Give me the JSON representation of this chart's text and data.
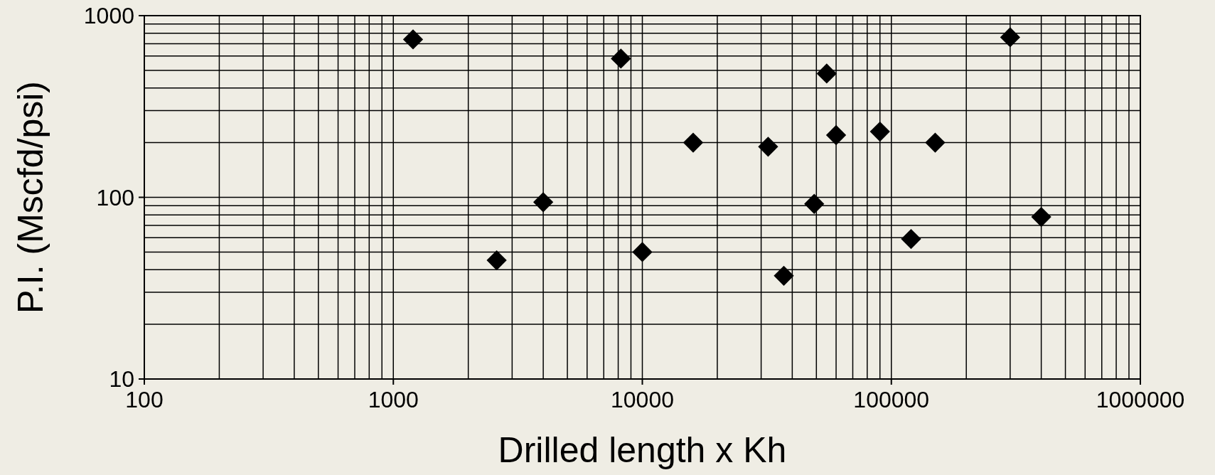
{
  "chart_data": {
    "type": "scatter",
    "xlabel": "Drilled length x Kh",
    "ylabel": "P.I. (Mscfd/psi)",
    "x": [
      1200,
      2600,
      4000,
      8200,
      10000,
      16000,
      32000,
      37000,
      49000,
      55000,
      60000,
      90000,
      120000,
      150000,
      300000,
      400000
    ],
    "series": [
      {
        "color": "#000000",
        "values": [
          740,
          45,
          94,
          580,
          50,
          200,
          190,
          37,
          92,
          480,
          220,
          230,
          59,
          200,
          760,
          78
        ]
      }
    ],
    "xlim": [
      100,
      1000000
    ],
    "ylim": [
      10,
      1000
    ],
    "xticks": [
      100,
      1000,
      10000,
      100000,
      1000000
    ],
    "yticks": [
      10,
      100,
      1000
    ],
    "log": "xy",
    "grid": true,
    "marker": "diamond"
  }
}
